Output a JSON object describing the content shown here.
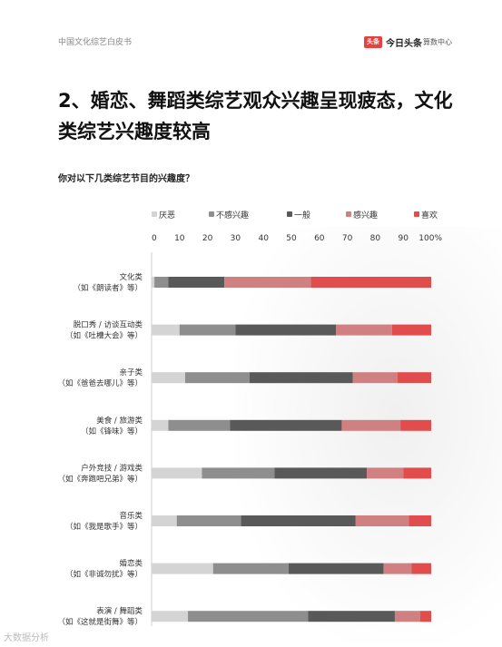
{
  "header": {
    "left_text": "中国文化综艺白皮书",
    "logo_badge": "头条",
    "brand_name": "今日头条",
    "brand_sub": "算数中心"
  },
  "title": "2、婚恋、舞蹈类综艺观众兴趣呈现疲态，文化类综艺兴趣度较高",
  "question": "你对以下几类综艺节目的兴趣度？",
  "watermark": "大数据分析",
  "chart_data": {
    "type": "bar",
    "orientation": "horizontal",
    "stacked": true,
    "percent_scale": true,
    "xlim": [
      0,
      100
    ],
    "x_ticks": [
      "0",
      "10",
      "20",
      "30",
      "40",
      "50",
      "60",
      "70",
      "80",
      "90",
      "100%"
    ],
    "legend_position": "top",
    "categories": [
      {
        "line1": "文化类",
        "line2": "（如《朗读者》等）"
      },
      {
        "line1": "脱口秀 / 访谈互动类",
        "line2": "（如《吐槽大会》等）"
      },
      {
        "line1": "亲子类",
        "line2": "（如《爸爸去哪儿》等）"
      },
      {
        "line1": "美食 / 旅游类",
        "line2": "（如《锋味》等）"
      },
      {
        "line1": "户外竞技 / 游戏类",
        "line2": "（如《奔跑吧兄弟》等）"
      },
      {
        "line1": "音乐类",
        "line2": "（如《我是歌手》等）"
      },
      {
        "line1": "婚恋类",
        "line2": "（如《非诚勿扰》等）"
      },
      {
        "line1": "表演 / 舞蹈类",
        "line2": "（如《这就是街舞》等）"
      }
    ],
    "series": [
      {
        "name": "厌恶",
        "color": "#d4d4d4",
        "values": [
          1,
          10,
          12,
          6,
          18,
          9,
          22,
          13
        ]
      },
      {
        "name": "不感兴趣",
        "color": "#8e8e8e",
        "values": [
          5,
          20,
          23,
          22,
          26,
          23,
          27,
          43
        ]
      },
      {
        "name": "一般",
        "color": "#595959",
        "values": [
          20,
          36,
          37,
          40,
          33,
          41,
          34,
          31
        ]
      },
      {
        "name": "感兴趣",
        "color": "#d08080",
        "values": [
          31,
          20,
          16,
          21,
          13,
          19,
          10,
          9
        ]
      },
      {
        "name": "喜欢",
        "color": "#e14c4c",
        "values": [
          43,
          14,
          12,
          11,
          10,
          8,
          7,
          4
        ]
      }
    ]
  }
}
